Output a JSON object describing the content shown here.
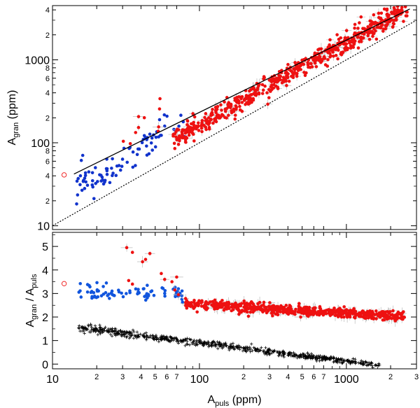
{
  "chart_data": [
    {
      "type": "scatter",
      "scale": "log-log",
      "xlim": [
        10,
        3000
      ],
      "ylim": [
        9,
        4500
      ],
      "xlabel": "A",
      "xlabel_sub": "puls",
      "xlabel_unit": " (ppm)",
      "ylabel": "A",
      "ylabel_sub": "gran",
      "ylabel_unit": " (ppm)",
      "y_major_ticks": [
        {
          "v": 10,
          "label": "10"
        },
        {
          "v": 100,
          "label": "100"
        },
        {
          "v": 1000,
          "label": "1000"
        }
      ],
      "y_minor_ticks": [
        {
          "v": 20,
          "label": "2"
        },
        {
          "v": 40,
          "label": "4"
        },
        {
          "v": 60,
          "label": "6"
        },
        {
          "v": 80,
          "label": "8"
        },
        {
          "v": 200,
          "label": "2"
        },
        {
          "v": 400,
          "label": "4"
        },
        {
          "v": 600,
          "label": "6"
        },
        {
          "v": 800,
          "label": "8"
        },
        {
          "v": 2000,
          "label": "2"
        },
        {
          "v": 4000,
          "label": "4"
        }
      ],
      "fit_line": {
        "x": [
          14,
          2700
        ],
        "y": [
          42,
          4100
        ],
        "style": "solid"
      },
      "reference_line": {
        "x": [
          10,
          3000
        ],
        "y": [
          10,
          3000
        ],
        "style": "dotted"
      },
      "series": [
        {
          "color": "#1133cc",
          "seed": 11,
          "n": 90,
          "x_range": [
            14,
            80
          ],
          "model": "1.35*pow(x,1.13)",
          "sigma": 0.1
        },
        {
          "color": "#ee1111",
          "seed": 23,
          "n": 620,
          "x_range": [
            65,
            2600
          ],
          "model": "1.75*pow(x,0.99)",
          "sigma": 0.06
        },
        {
          "color": "#ee1111",
          "seed": 5,
          "n": 10,
          "x_range": [
            24,
            60
          ],
          "model": "3.4*x",
          "sigma": 0.12
        },
        {
          "color": "#ee1111",
          "marker": "open-circle",
          "points": [
            [
              12,
              41
            ]
          ]
        }
      ]
    },
    {
      "type": "scatter",
      "scale": "log-linear",
      "xlim": [
        10,
        3000
      ],
      "ylim": [
        -0.2,
        5.6
      ],
      "xlabel": "A",
      "xlabel_sub": "puls",
      "xlabel_unit": " (ppm)",
      "ylabel": "A",
      "ylabel_sub": "gran",
      "ylabel_mid": " / A",
      "ylabel_sub2": "puls",
      "y_ticks": [
        0,
        1,
        2,
        3,
        4,
        5
      ],
      "x_major_ticks": [
        {
          "v": 10,
          "label": "10"
        },
        {
          "v": 100,
          "label": "100"
        },
        {
          "v": 1000,
          "label": "1000"
        }
      ],
      "x_minor_ticks": [
        {
          "v": 20,
          "label": "2"
        },
        {
          "v": 30,
          "label": "3"
        },
        {
          "v": 40,
          "label": "4"
        },
        {
          "v": 50,
          "label": "5"
        },
        {
          "v": 60,
          "label": "6"
        },
        {
          "v": 70,
          "label": "7"
        },
        {
          "v": 200,
          "label": "2"
        },
        {
          "v": 300,
          "label": "3"
        },
        {
          "v": 400,
          "label": "4"
        },
        {
          "v": 500,
          "label": "5"
        },
        {
          "v": 600,
          "label": "6"
        },
        {
          "v": 700,
          "label": "7"
        },
        {
          "v": 2000,
          "label": "2"
        },
        {
          "v": 3000,
          "label": "3"
        }
      ],
      "series": [
        {
          "color": "#1155dd",
          "seed": 31,
          "n": 80,
          "x_range": [
            15,
            78
          ],
          "model": "3.1 - 0.2*log10(x/15)",
          "sigma": 0.06
        },
        {
          "color": "#ee1111",
          "seed": 47,
          "n": 620,
          "x_range": [
            80,
            2500
          ],
          "model": "2.55 - 0.35*log10(x/80)",
          "sigma": 0.045
        },
        {
          "color": "#ee1111",
          "points": [
            [
              32,
              4.95
            ],
            [
              35,
              4.75
            ],
            [
              33,
              3.55
            ],
            [
              35,
              3.4
            ],
            [
              41,
              4.35
            ],
            [
              43,
              4.45
            ],
            [
              46,
              4.7
            ],
            [
              55,
              3.85
            ],
            [
              58,
              3.6
            ],
            [
              65,
              3.5
            ],
            [
              70,
              3.7
            ],
            [
              68,
              3.15
            ],
            [
              72,
              2.95
            ]
          ]
        },
        {
          "color": "#000000",
          "marker": "plus",
          "seed": 59,
          "n": 700,
          "x_range": [
            15,
            1700
          ],
          "model": "1.55 - 0.78*log10(x/15)",
          "sigma": 0.06
        },
        {
          "color": "#ee1111",
          "marker": "open-circle",
          "points": [
            [
              12,
              3.42
            ]
          ]
        }
      ]
    }
  ]
}
